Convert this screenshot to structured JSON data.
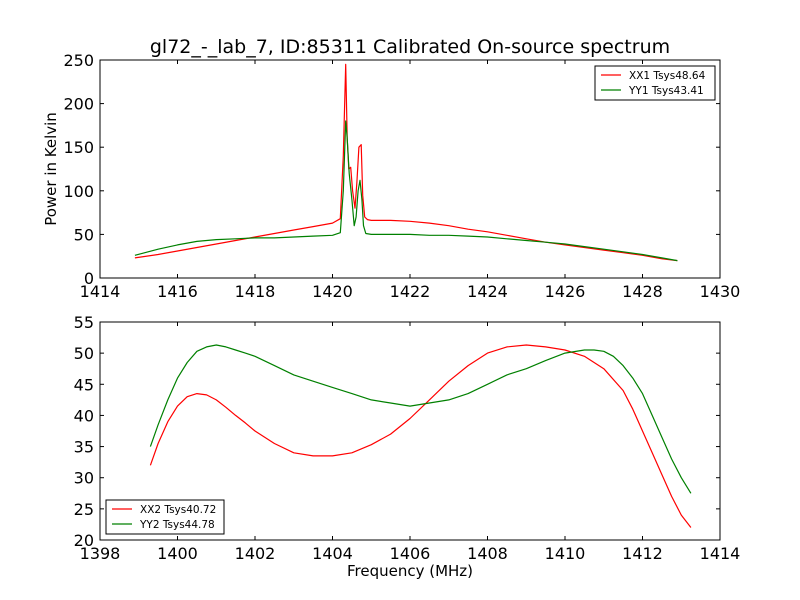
{
  "figure": {
    "title": "gl72_-_lab_7, ID:85311 Calibrated On-source spectrum",
    "ylabel": "Power in Kelvin",
    "xlabel": "Frequency (MHz)"
  },
  "chart_data": [
    {
      "type": "line",
      "title": "gl72_-_lab_7, ID:85311 Calibrated On-source spectrum",
      "ylabel": "Power in Kelvin",
      "xlim": [
        1414,
        1430
      ],
      "ylim": [
        0,
        250
      ],
      "xticks": [
        1414,
        1416,
        1418,
        1420,
        1422,
        1424,
        1426,
        1428,
        1430
      ],
      "yticks": [
        0,
        50,
        100,
        150,
        200,
        250
      ],
      "grid": false,
      "legend": "top-right",
      "series": [
        {
          "name": "XX1 Tsys48.64",
          "color": "#ff0000",
          "x": [
            1414.9,
            1415.5,
            1416.0,
            1416.5,
            1417.0,
            1417.5,
            1418.0,
            1418.5,
            1419.0,
            1419.5,
            1420.0,
            1420.2,
            1420.28,
            1420.34,
            1420.38,
            1420.42,
            1420.47,
            1420.52,
            1420.58,
            1420.63,
            1420.68,
            1420.74,
            1420.78,
            1420.83,
            1420.9,
            1421.0,
            1421.5,
            1422.0,
            1422.5,
            1423.0,
            1423.5,
            1424.0,
            1424.5,
            1425.0,
            1425.5,
            1426.0,
            1426.5,
            1427.0,
            1427.5,
            1428.0,
            1428.5,
            1428.9
          ],
          "values": [
            23,
            27,
            31,
            35,
            39,
            43,
            47,
            51,
            55,
            59,
            63,
            68,
            140,
            245,
            160,
            125,
            127,
            100,
            80,
            110,
            150,
            153,
            95,
            70,
            67,
            66,
            66,
            65,
            63,
            60,
            56,
            53,
            49,
            45,
            41,
            38,
            35,
            32,
            29,
            26,
            22,
            20
          ]
        },
        {
          "name": "YY1 Tsys43.41",
          "color": "#008000",
          "x": [
            1414.9,
            1415.5,
            1416.0,
            1416.5,
            1417.0,
            1417.5,
            1418.0,
            1418.5,
            1419.0,
            1419.5,
            1420.0,
            1420.2,
            1420.28,
            1420.34,
            1420.38,
            1420.43,
            1420.5,
            1420.56,
            1420.61,
            1420.66,
            1420.71,
            1420.76,
            1420.8,
            1420.86,
            1421.0,
            1421.5,
            1422.0,
            1422.5,
            1423.0,
            1423.5,
            1424.0,
            1424.5,
            1425.0,
            1425.5,
            1426.0,
            1426.5,
            1427.0,
            1427.5,
            1428.0,
            1428.5,
            1428.9
          ],
          "values": [
            26,
            33,
            38,
            42,
            44,
            45,
            46,
            46,
            47,
            48,
            49,
            52,
            100,
            180,
            160,
            120,
            90,
            60,
            70,
            100,
            112,
            90,
            60,
            51,
            50,
            50,
            50,
            49,
            49,
            48,
            47,
            45,
            43,
            41,
            39,
            36,
            33,
            30,
            27,
            23,
            20
          ]
        }
      ]
    },
    {
      "type": "line",
      "xlabel": "Frequency (MHz)",
      "xlim": [
        1398,
        1414
      ],
      "ylim": [
        20,
        55
      ],
      "xticks": [
        1398,
        1400,
        1402,
        1404,
        1406,
        1408,
        1410,
        1412,
        1414
      ],
      "yticks": [
        20,
        25,
        30,
        35,
        40,
        45,
        50,
        55
      ],
      "grid": false,
      "legend": "bottom-left",
      "series": [
        {
          "name": "XX2 Tsys40.72",
          "color": "#ff0000",
          "x": [
            1399.3,
            1399.5,
            1399.75,
            1400.0,
            1400.25,
            1400.5,
            1400.75,
            1401.0,
            1401.25,
            1401.5,
            1401.75,
            1402.0,
            1402.25,
            1402.5,
            1403.0,
            1403.5,
            1404.0,
            1404.5,
            1405.0,
            1405.5,
            1406.0,
            1406.5,
            1407.0,
            1407.5,
            1408.0,
            1408.5,
            1409.0,
            1409.5,
            1410.0,
            1410.5,
            1411.0,
            1411.5,
            1411.75,
            1412.0,
            1412.25,
            1412.5,
            1412.75,
            1413.0,
            1413.25
          ],
          "values": [
            32,
            35.5,
            39,
            41.5,
            43,
            43.5,
            43.3,
            42.5,
            41.3,
            40,
            38.8,
            37.5,
            36.5,
            35.5,
            34,
            33.5,
            33.5,
            34,
            35.3,
            37,
            39.5,
            42.5,
            45.5,
            48,
            50,
            51,
            51.3,
            51,
            50.5,
            49.5,
            47.5,
            44,
            41,
            37.5,
            34,
            30.5,
            27,
            24,
            22
          ]
        },
        {
          "name": "YY2 Tsys44.78",
          "color": "#008000",
          "x": [
            1399.3,
            1399.5,
            1399.75,
            1400.0,
            1400.25,
            1400.5,
            1400.75,
            1401.0,
            1401.25,
            1401.5,
            1401.75,
            1402.0,
            1402.5,
            1403.0,
            1403.5,
            1404.0,
            1404.5,
            1405.0,
            1405.5,
            1406.0,
            1406.5,
            1407.0,
            1407.5,
            1408.0,
            1408.5,
            1409.0,
            1409.5,
            1410.0,
            1410.5,
            1410.75,
            1411.0,
            1411.25,
            1411.5,
            1411.75,
            1412.0,
            1412.25,
            1412.5,
            1412.75,
            1413.0,
            1413.25
          ],
          "values": [
            35,
            38.5,
            42.5,
            46,
            48.5,
            50.3,
            51,
            51.3,
            51,
            50.5,
            50,
            49.5,
            48,
            46.5,
            45.5,
            44.5,
            43.5,
            42.5,
            42,
            41.5,
            42,
            42.5,
            43.5,
            45,
            46.5,
            47.5,
            48.8,
            50,
            50.5,
            50.5,
            50.3,
            49.5,
            48,
            46,
            43.5,
            40,
            36.5,
            33,
            30,
            27.5
          ]
        }
      ]
    }
  ]
}
